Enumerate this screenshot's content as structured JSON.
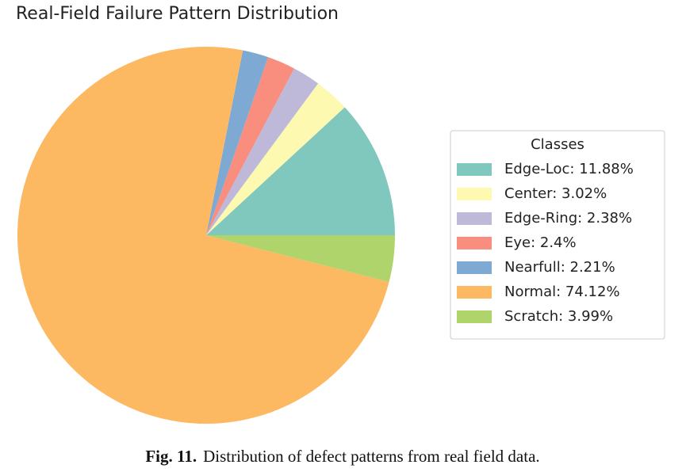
{
  "chart_data": {
    "type": "pie",
    "title": "Real-Field Failure Pattern Distribution",
    "categories": [
      "Edge-Loc: 11.88%",
      "Center: 3.02%",
      "Edge-Ring: 2.38%",
      "Eye: 2.4%",
      "Nearfull: 2.21%",
      "Normal: 74.12%",
      "Scratch: 3.99%"
    ],
    "values": [
      11.88,
      3.02,
      2.38,
      2.4,
      2.21,
      74.12,
      3.99
    ],
    "colors": [
      "#80c7bd",
      "#fdf9b0",
      "#beb8d9",
      "#f98d7e",
      "#7ea9d2",
      "#fdb862",
      "#afd46c"
    ],
    "legend_title": "Classes",
    "legend": "right"
  },
  "caption": {
    "label": "Fig. 11.",
    "text": "Distribution of defect patterns from real field data."
  }
}
